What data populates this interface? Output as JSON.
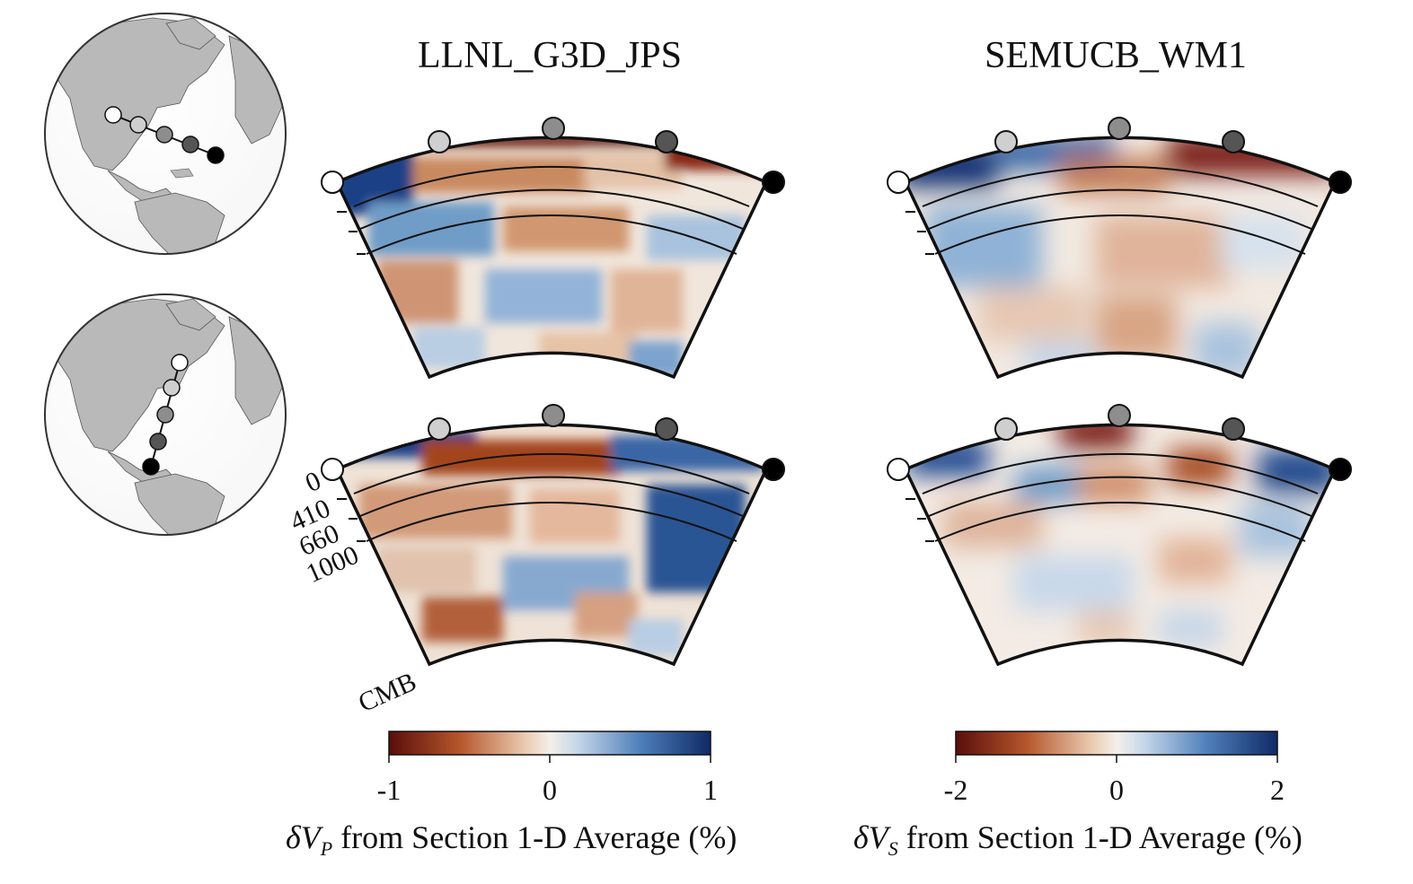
{
  "panels": {
    "left_title": "LLNL_G3D_JPS",
    "right_title": "SEMUCB_WM1"
  },
  "depth_labels": [
    "0",
    "410",
    "660",
    "1000",
    "CMB"
  ],
  "colorbars": [
    {
      "ticks": [
        "-1",
        "0",
        "1"
      ],
      "label": "δV_P from Section 1-D Average (%)",
      "label_main": "δV",
      "label_sub": "P",
      "label_rest": " from Section 1-D Average (%)"
    },
    {
      "ticks": [
        "-2",
        "0",
        "2"
      ],
      "label": "δV_S from Section 1-D Average (%)",
      "label_main": "δV",
      "label_sub": "S",
      "label_rest": " from Section 1-D Average (%)"
    }
  ],
  "colors": {
    "slow": "#5a0e0a",
    "mid_slow": "#c47a4e",
    "neutral": "#f4ede6",
    "mid_fast": "#6f9cc8",
    "fast": "#0f2a66",
    "land": "#b9b9b9",
    "ocean": "#ffffff"
  },
  "profile_markers": [
    "white",
    "light-gray",
    "gray",
    "dark-gray",
    "black"
  ]
}
